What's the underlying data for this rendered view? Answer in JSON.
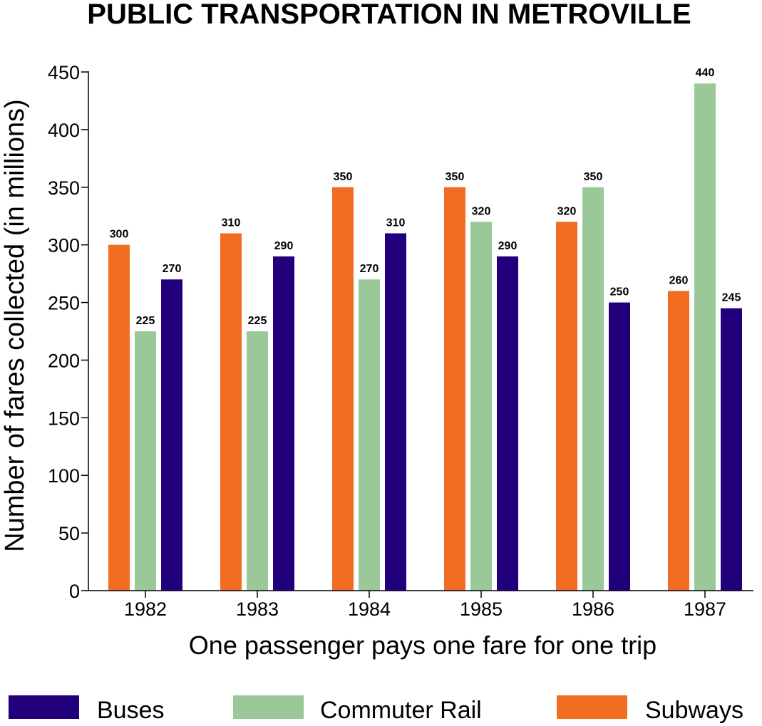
{
  "chart_data": {
    "type": "bar",
    "title": "PUBLIC TRANSPORTATION IN METROVILLE",
    "xlabel": "One passenger pays one fare for one trip",
    "ylabel": "Number of fares collected (in millions)",
    "ylim": [
      0,
      450
    ],
    "yticks": [
      0,
      50,
      100,
      150,
      200,
      250,
      300,
      350,
      400,
      450
    ],
    "categories": [
      "1982",
      "1983",
      "1984",
      "1985",
      "1986",
      "1987"
    ],
    "series": [
      {
        "name": "Subways",
        "color": "#f26d21",
        "values": [
          300,
          310,
          350,
          350,
          320,
          260
        ]
      },
      {
        "name": "Commuter Rail",
        "color": "#9bc899",
        "values": [
          225,
          225,
          270,
          320,
          350,
          440
        ]
      },
      {
        "name": "Buses",
        "color": "#22007c",
        "values": [
          270,
          290,
          310,
          290,
          250,
          245
        ]
      }
    ],
    "legend": {
      "placement": "bottom",
      "order": [
        "Buses",
        "Commuter Rail",
        "Subways"
      ]
    },
    "grid": false,
    "data_labels": true
  }
}
